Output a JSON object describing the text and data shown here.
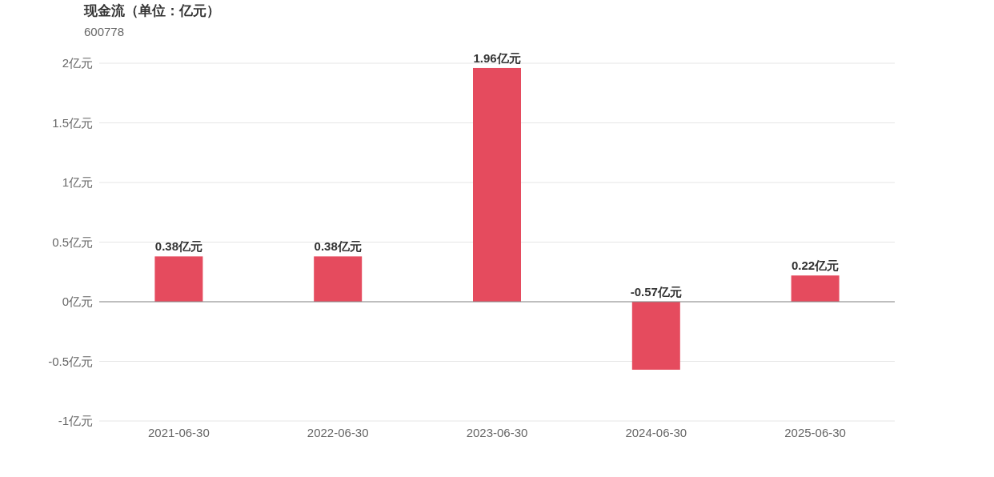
{
  "chart_data": {
    "type": "bar",
    "title": "现金流（单位：亿元）",
    "subtitle": "600778",
    "categories": [
      "2021-06-30",
      "2022-06-30",
      "2023-06-30",
      "2024-06-30",
      "2025-06-30"
    ],
    "values": [
      0.38,
      0.38,
      1.96,
      -0.57,
      0.22
    ],
    "value_labels": [
      "0.38亿元",
      "0.38亿元",
      "1.96亿元",
      "-0.57亿元",
      "0.22亿元"
    ],
    "color": "#e54b5e",
    "ylim": [
      -1,
      2
    ],
    "yticks": [
      {
        "value": -1,
        "label": "-1亿元"
      },
      {
        "value": -0.5,
        "label": "-0.5亿元"
      },
      {
        "value": 0,
        "label": "0亿元"
      },
      {
        "value": 0.5,
        "label": "0.5亿元"
      },
      {
        "value": 1,
        "label": "1亿元"
      },
      {
        "value": 1.5,
        "label": "1.5亿元"
      },
      {
        "value": 2,
        "label": "2亿元"
      }
    ],
    "grid": "y"
  }
}
